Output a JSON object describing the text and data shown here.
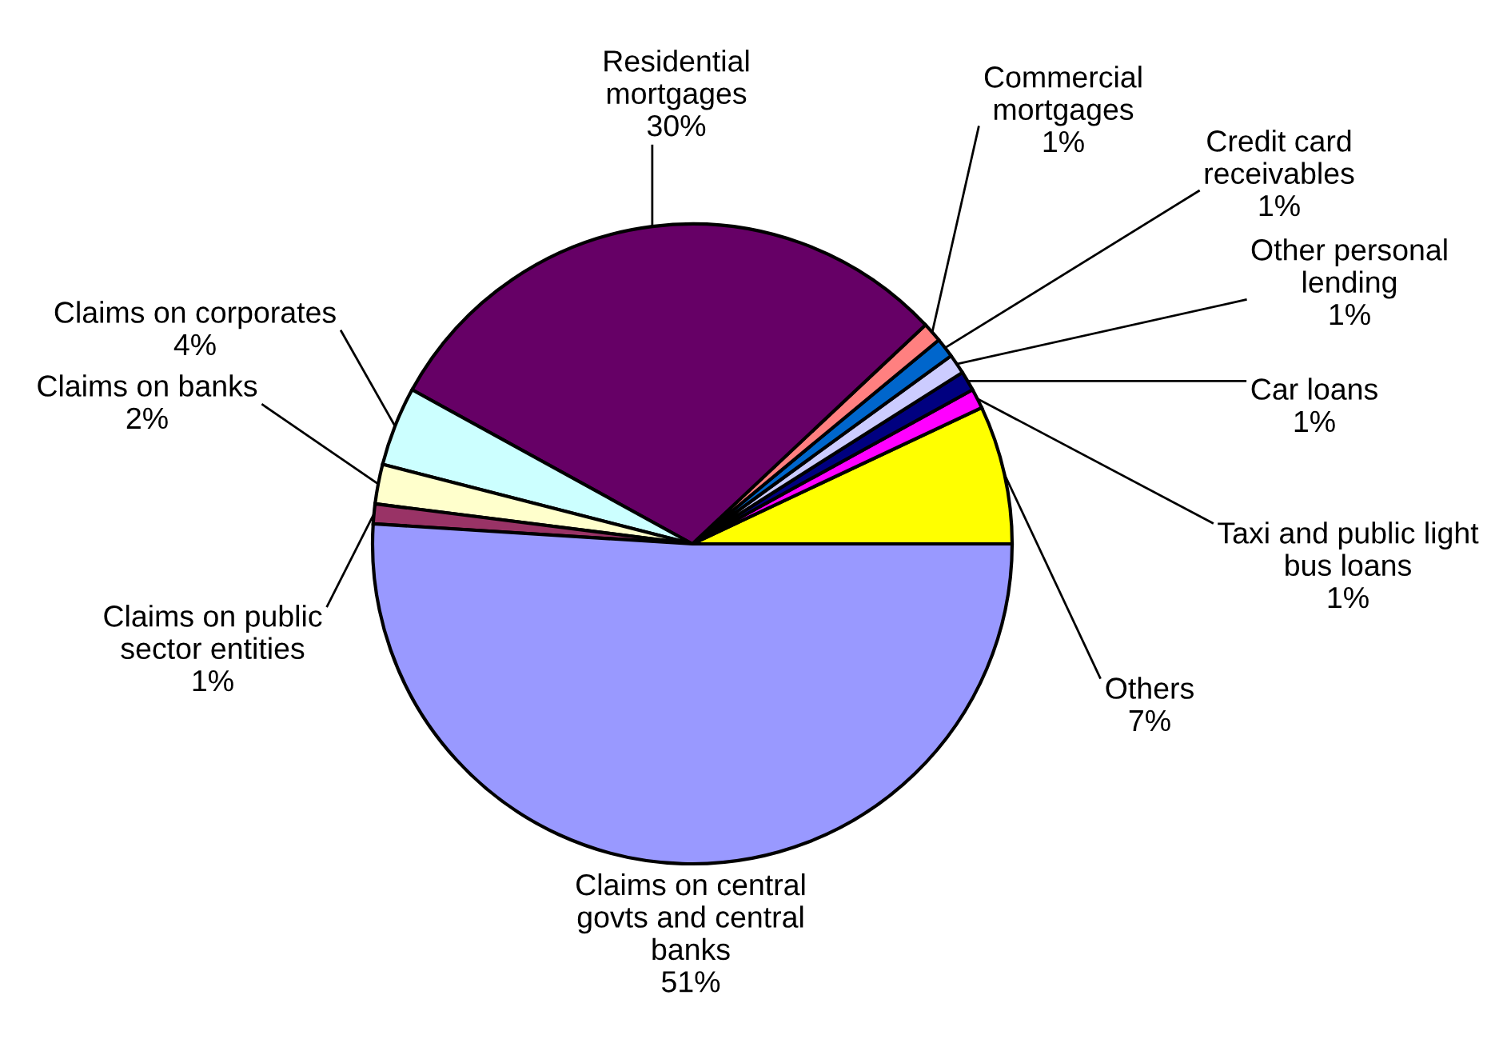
{
  "chart_data": {
    "type": "pie",
    "categories": [
      "Others",
      "Taxi and public light bus loans",
      "Car loans",
      "Other personal lending",
      "Credit card receivables",
      "Commercial mortgages",
      "Residential mortgages",
      "Claims on corporates",
      "Claims on banks",
      "Claims on public sector entities",
      "Claims on central govts and central banks"
    ],
    "values": [
      7,
      1,
      1,
      1,
      1,
      1,
      30,
      4,
      2,
      1,
      51
    ],
    "value_labels": [
      "7%",
      "1%",
      "1%",
      "1%",
      "1%",
      "1%",
      "30%",
      "4%",
      "2%",
      "1%",
      "51%"
    ],
    "colors": [
      "#ffff00",
      "#ff00ff",
      "#000080",
      "#ccccff",
      "#0066cc",
      "#ff8080",
      "#660066",
      "#ccffff",
      "#ffffcc",
      "#993366",
      "#9999ff"
    ],
    "legend": false
  }
}
